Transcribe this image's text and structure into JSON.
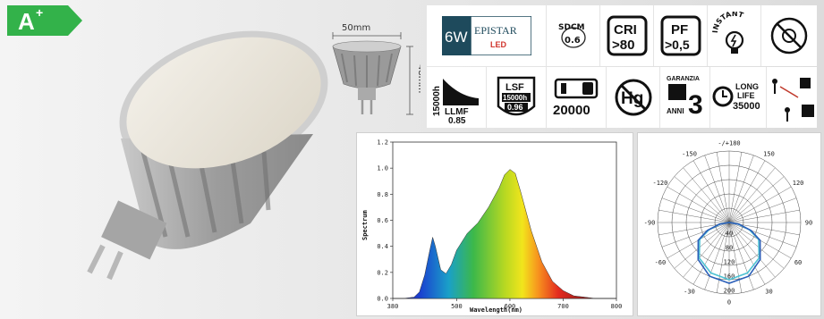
{
  "energy_label": {
    "class": "A",
    "plus": "+",
    "color": "#33b24a"
  },
  "dimensions": {
    "width": "50mm",
    "height": "48mm"
  },
  "badges": {
    "watt": "6W",
    "brand": "EPISTAR",
    "brand_sub": "LED",
    "sdcm_label": "SDCM",
    "sdcm_value": "0.6",
    "cri_label": "CRI",
    "cri_value": ">80",
    "pf_label": "PF",
    "pf_value": ">0,5",
    "instant_label": "INSTANT",
    "llmf_hours": "15000h",
    "llmf_label": "LLMF",
    "llmf_value": "0.85",
    "lsf_label": "LSF",
    "lsf_hours": "15000h",
    "lsf_value": "0.96",
    "switch_cycles": "20000",
    "mercury": "Hg",
    "warranty_label": "GARANZIA",
    "warranty_years": "3",
    "warranty_unit": "ANNI",
    "life_label_1": "LONG",
    "life_label_2": "LIFE",
    "life_hours": "35000"
  },
  "chart_data": [
    {
      "type": "area",
      "xlabel": "Wavelength(nm)",
      "ylabel": "Spectrum",
      "xlim": [
        380,
        800
      ],
      "ylim": [
        0,
        1.2
      ],
      "x_ticks": [
        "380",
        "500",
        "600",
        "700",
        "800"
      ],
      "y_ticks": [
        "0.0",
        "0.2",
        "0.4",
        "0.6",
        "0.8",
        "1.0",
        "1.2"
      ],
      "x": [
        380,
        400,
        420,
        430,
        440,
        450,
        455,
        460,
        470,
        480,
        490,
        500,
        520,
        540,
        560,
        580,
        590,
        600,
        610,
        620,
        640,
        660,
        680,
        700,
        720,
        740,
        760,
        780,
        800
      ],
      "values": [
        0,
        0,
        0.01,
        0.05,
        0.18,
        0.38,
        0.47,
        0.4,
        0.22,
        0.19,
        0.26,
        0.37,
        0.5,
        0.58,
        0.7,
        0.85,
        0.95,
        0.99,
        0.96,
        0.82,
        0.52,
        0.28,
        0.13,
        0.06,
        0.02,
        0.01,
        0,
        0,
        0
      ]
    },
    {
      "type": "polar",
      "angle_labels": [
        "-/+180",
        "150",
        "-150",
        "120",
        "-120",
        "90",
        "-90",
        "60",
        "-60",
        "30",
        "-30",
        "0"
      ],
      "radial_labels": [
        "40",
        "80",
        "120",
        "160",
        "200"
      ],
      "series": [
        {
          "color": "#4fc3d4",
          "values": [
            [
              0,
              160
            ],
            [
              20,
              150
            ],
            [
              40,
              130
            ],
            [
              60,
              95
            ],
            [
              70,
              60
            ],
            [
              80,
              25
            ],
            [
              90,
              0
            ]
          ]
        },
        {
          "color": "#2b5fb8",
          "values": [
            [
              0,
              170
            ],
            [
              20,
              160
            ],
            [
              40,
              135
            ],
            [
              60,
              100
            ],
            [
              70,
              65
            ],
            [
              80,
              28
            ],
            [
              90,
              0
            ]
          ]
        }
      ]
    }
  ]
}
